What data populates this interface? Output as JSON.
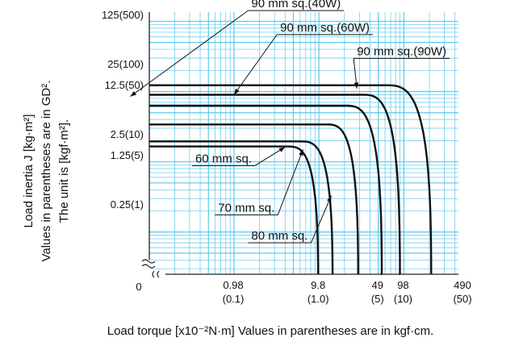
{
  "chart_data": {
    "type": "line",
    "x_scale": "log",
    "y_scale": "log",
    "grid": true,
    "grid_color": "#5bc8ec",
    "line_color": "#111111",
    "xlabel": "Load torque [x10⁻²N·m]  Values in parentheses are in kgf·cm.",
    "ylabel_lines": [
      "Load inertia J [kg·m²]",
      "Values in parentheses are in GD².",
      "The unit is [kgf·m²]."
    ],
    "origin_label": "0",
    "x_ticks": [
      {
        "value": 0.98,
        "label": "0.98",
        "sub": "(0.1)"
      },
      {
        "value": 9.8,
        "label": "9.8",
        "sub": "(1.0)"
      },
      {
        "value": 49,
        "label": "49",
        "sub": "(5)"
      },
      {
        "value": 98,
        "label": "98",
        "sub": "(10)"
      },
      {
        "value": 490,
        "label": "490",
        "sub": "(50)"
      }
    ],
    "y_ticks": [
      {
        "value": 125,
        "label": "125(500)"
      },
      {
        "value": 25,
        "label": "25(100)"
      },
      {
        "value": 12.5,
        "label": "12.5(50)"
      },
      {
        "value": 2.5,
        "label": "2.5(10)"
      },
      {
        "value": 1.25,
        "label": "1.25(5)"
      },
      {
        "value": 0.25,
        "label": "0.25(1)"
      }
    ],
    "series": [
      {
        "name": "60 mm sq.",
        "plateau": 1.65,
        "x_end": 9.8,
        "knee_x": 4.2,
        "label_x": 0.35,
        "label_y": 0.98,
        "target_x": 4.0,
        "target_y": 1.62
      },
      {
        "name": "70 mm sq.",
        "plateau": 1.95,
        "x_end": 14.5,
        "knee_x": 6.0,
        "label_x": 0.65,
        "label_y": 0.195,
        "target_x": 6.5,
        "target_y": 1.5
      },
      {
        "name": "80 mm sq.",
        "plateau": 3.4,
        "x_end": 29,
        "knee_x": 12,
        "label_x": 1.6,
        "label_y": 0.078,
        "target_x": 14,
        "target_y": 0.33
      },
      {
        "name": "90 mm sq.(40W)",
        "plateau": 6.3,
        "x_end": 55,
        "knee_x": 20,
        "label_x": 1.6,
        "label_y": 158,
        "target_x": 0.06,
        "target_y": 8.5
      },
      {
        "name": "90 mm sq.(60W)",
        "plateau": 9.0,
        "x_end": 90,
        "knee_x": 32,
        "label_x": 3.5,
        "label_y": 72,
        "target_x": 1.0,
        "target_y": 9.0
      },
      {
        "name": "90 mm sq.(90W)",
        "plateau": 12.3,
        "x_end": 210,
        "knee_x": 60,
        "label_x": 28,
        "label_y": 33,
        "target_x": 28,
        "target_y": 11.0
      }
    ]
  }
}
